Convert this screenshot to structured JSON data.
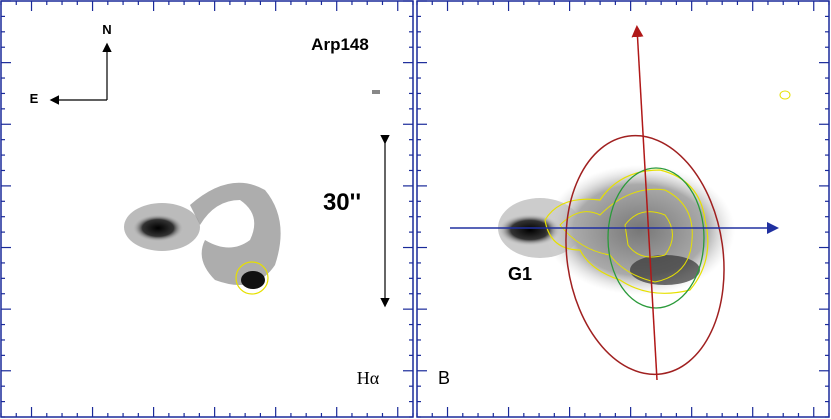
{
  "left_panel": {
    "compass": {
      "north": "N",
      "east": "E"
    },
    "object": "Arp148",
    "scale": "30''",
    "filter": "Hα"
  },
  "right_panel": {
    "panel_label": "B",
    "component": "G1"
  }
}
